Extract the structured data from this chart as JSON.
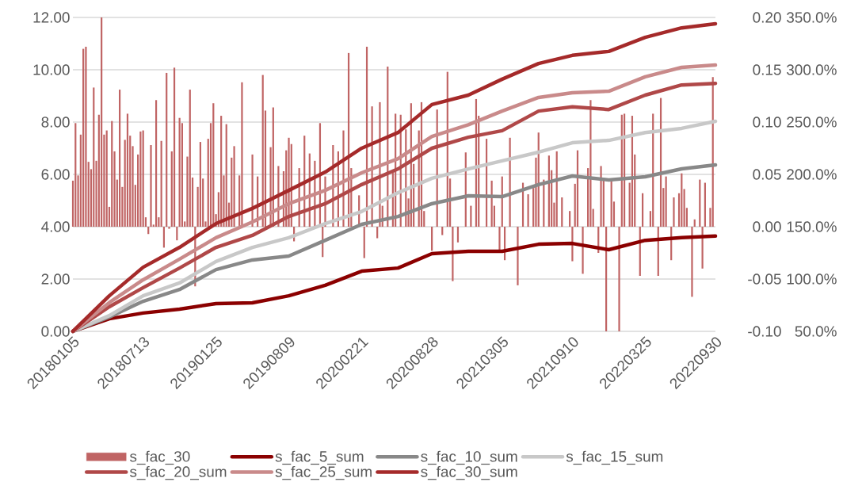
{
  "chart_data": {
    "type": "line",
    "xlim": [
      "2018-01-05",
      "2022-09-30"
    ],
    "xticks": [
      {
        "value": "2018-01-05",
        "label": "20180105"
      },
      {
        "value": "2018-07-13",
        "label": "20180713"
      },
      {
        "value": "2019-01-25",
        "label": "20190125"
      },
      {
        "value": "2019-08-09",
        "label": "20190809"
      },
      {
        "value": "2020-02-21",
        "label": "20200221"
      },
      {
        "value": "2020-08-28",
        "label": "20200828"
      },
      {
        "value": "2021-03-05",
        "label": "20210305"
      },
      {
        "value": "2021-09-10",
        "label": "20210910"
      },
      {
        "value": "2022-03-25",
        "label": "20220325"
      },
      {
        "value": "2022-09-30",
        "label": "20220930"
      }
    ],
    "ylim": [
      0,
      12
    ],
    "yticks": [
      {
        "value": 0,
        "label": "0.00"
      },
      {
        "value": 2,
        "label": "2.00"
      },
      {
        "value": 4,
        "label": "4.00"
      },
      {
        "value": 6,
        "label": "6.00"
      },
      {
        "value": 8,
        "label": "8.00"
      },
      {
        "value": 10,
        "label": "10.00"
      },
      {
        "value": 12,
        "label": "12.00"
      }
    ],
    "y2lim": [
      -0.1,
      0.2
    ],
    "y2ticks": [
      {
        "value": -0.1,
        "label": "-0.10"
      },
      {
        "value": -0.05,
        "label": "-0.05"
      },
      {
        "value": 0,
        "label": "0.00"
      },
      {
        "value": 0.05,
        "label": "0.05"
      },
      {
        "value": 0.1,
        "label": "0.10"
      },
      {
        "value": 0.15,
        "label": "0.15"
      },
      {
        "value": 0.2,
        "label": "0.20"
      }
    ],
    "y3lim": [
      50,
      350
    ],
    "y3ticks": [
      {
        "value": 50,
        "label": "50.0%"
      },
      {
        "value": 100,
        "label": "100.0%"
      },
      {
        "value": 150,
        "label": "150.0%"
      },
      {
        "value": 200,
        "label": "200.0%"
      },
      {
        "value": 250,
        "label": "250.0%"
      },
      {
        "value": 300,
        "label": "300.0%"
      },
      {
        "value": 350,
        "label": "350.0%"
      }
    ],
    "grid": "y",
    "legend": "bottom",
    "x": [
      "2018-01-05",
      "2018-04-13",
      "2018-07-13",
      "2018-10-19",
      "2019-01-25",
      "2019-05-03",
      "2019-08-09",
      "2019-11-15",
      "2020-02-21",
      "2020-05-29",
      "2020-08-28",
      "2020-12-04",
      "2021-03-05",
      "2021-06-11",
      "2021-09-10",
      "2021-12-17",
      "2022-03-25",
      "2022-07-01",
      "2022-09-30"
    ],
    "series": [
      {
        "name": "s_fac_30",
        "type": "bar",
        "axis": "y2",
        "color": "#c06464",
        "x": [
          "2018-01-05",
          "2018-01-12",
          "2018-01-19",
          "2018-01-26",
          "2018-02-02",
          "2018-02-09",
          "2018-02-16",
          "2018-02-23",
          "2018-03-02",
          "2018-03-09",
          "2018-03-16",
          "2018-03-23",
          "2018-03-30",
          "2018-04-06",
          "2018-04-13",
          "2018-04-20",
          "2018-04-27",
          "2018-05-04",
          "2018-05-11",
          "2018-05-18",
          "2018-05-25",
          "2018-06-01",
          "2018-06-08",
          "2018-06-15",
          "2018-06-22",
          "2018-06-29",
          "2018-07-06",
          "2018-07-13",
          "2018-07-20",
          "2018-07-27",
          "2018-08-03",
          "2018-08-10",
          "2018-08-17",
          "2018-08-24",
          "2018-08-31",
          "2018-09-07",
          "2018-09-14",
          "2018-09-21",
          "2018-09-28",
          "2018-10-05",
          "2018-10-12",
          "2018-10-19",
          "2018-10-26",
          "2018-11-02",
          "2018-11-09",
          "2018-11-16",
          "2018-11-23",
          "2018-11-30",
          "2018-12-07",
          "2018-12-14",
          "2018-12-21",
          "2018-12-28",
          "2019-01-04",
          "2019-01-11",
          "2019-01-18",
          "2019-01-25",
          "2019-02-01",
          "2019-02-08",
          "2019-02-15",
          "2019-02-22",
          "2019-03-01",
          "2019-03-08",
          "2019-03-15",
          "2019-03-29",
          "2019-04-05",
          "2019-05-03",
          "2019-05-17",
          "2019-05-31",
          "2019-06-07",
          "2019-06-21",
          "2019-06-28",
          "2019-07-12",
          "2019-07-26",
          "2019-08-02",
          "2019-08-09",
          "2019-08-16",
          "2019-08-23",
          "2019-09-06",
          "2019-09-20",
          "2019-10-04",
          "2019-10-18",
          "2019-11-01",
          "2019-11-08",
          "2019-11-15",
          "2019-12-06",
          "2019-12-20",
          "2020-01-03",
          "2020-01-17",
          "2020-01-24",
          "2020-02-14",
          "2020-02-28",
          "2020-03-06",
          "2020-03-20",
          "2020-04-03",
          "2020-04-10",
          "2020-04-17",
          "2020-05-01",
          "2020-05-15",
          "2020-05-22",
          "2020-06-05",
          "2020-06-19",
          "2020-06-26",
          "2020-07-03",
          "2020-07-10",
          "2020-07-24",
          "2020-07-31",
          "2020-08-07",
          "2020-08-28",
          "2020-09-11",
          "2020-09-25",
          "2020-10-09",
          "2020-10-16",
          "2020-10-23",
          "2020-11-06",
          "2020-11-13",
          "2020-11-27",
          "2020-12-11",
          "2020-12-25",
          "2021-01-01",
          "2021-01-22",
          "2021-02-05",
          "2021-02-12",
          "2021-02-26",
          "2021-03-05",
          "2021-03-12",
          "2021-03-26",
          "2021-04-16",
          "2021-04-30",
          "2021-05-14",
          "2021-05-28",
          "2021-06-04",
          "2021-06-11",
          "2021-06-25",
          "2021-07-09",
          "2021-07-16",
          "2021-07-23",
          "2021-07-30",
          "2021-08-13",
          "2021-09-03",
          "2021-09-10",
          "2021-09-17",
          "2021-09-24",
          "2021-10-08",
          "2021-10-22",
          "2021-10-29",
          "2021-11-05",
          "2021-11-19",
          "2021-11-26",
          "2021-12-03",
          "2021-12-10",
          "2021-12-24",
          "2021-12-31",
          "2022-01-14",
          "2022-01-21",
          "2022-01-28",
          "2022-02-11",
          "2022-02-18",
          "2022-02-25",
          "2022-03-11",
          "2022-03-18",
          "2022-04-01",
          "2022-04-08",
          "2022-04-15",
          "2022-04-29",
          "2022-05-06",
          "2022-05-13",
          "2022-05-20",
          "2022-06-03",
          "2022-06-10",
          "2022-06-24",
          "2022-07-01",
          "2022-07-08",
          "2022-07-15",
          "2022-07-29",
          "2022-08-05",
          "2022-08-19",
          "2022-08-26",
          "2022-09-02",
          "2022-09-16",
          "2022-09-23"
        ],
        "values": [
          0.044,
          0.099,
          0.049,
          0.088,
          0.17,
          0.172,
          0.062,
          0.055,
          0.133,
          0.063,
          0.107,
          0.2,
          0.088,
          0.092,
          0.019,
          0.101,
          0.072,
          0.045,
          0.131,
          0.038,
          0.083,
          0.108,
          0.087,
          0.077,
          0.04,
          0.069,
          0.091,
          0.092,
          0.009,
          -0.007,
          0.078,
          0.002,
          0.121,
          0.009,
          0.082,
          -0.02,
          0.147,
          -0.002,
          0.072,
          0.152,
          -0.013,
          0.104,
          0.099,
          0.005,
          0.067,
          0.131,
          0.047,
          -0.057,
          0.038,
          0.081,
          0.046,
          0.005,
          0.084,
          0.099,
          0.118,
          0.012,
          0.033,
          0.106,
          0.049,
          0.098,
          0.023,
          0.066,
          0.077,
          0.049,
          0.138,
          0.069,
          0.048,
          0.145,
          0.111,
          0.076,
          0.114,
          0.058,
          0.053,
          0.073,
          0.085,
          0.079,
          -0.014,
          0.056,
          0.087,
          0.07,
          0.063,
          0.099,
          -0.029,
          0.048,
          0.078,
          0.072,
          0.092,
          0.166,
          0.056,
          0.03,
          -0.03,
          0.172,
          0.115,
          -0.011,
          0.119,
          0.02,
          0.153,
          0.052,
          0.108,
          0.107,
          0.093,
          0.027,
          0.118,
          0.06,
          0.092,
          0.119,
          0.015,
          -0.023,
          0.112,
          -0.008,
          0.148,
          0.046,
          -0.052,
          -0.015,
          null,
          0.071,
          0.02,
          0.122,
          0.106,
          0.084,
          0.044,
          0.02,
          -0.022,
          0.048,
          -0.032,
          0.085,
          -0.056,
          0.042,
          0.031,
          0.037,
          0.066,
          0.09,
          0.045,
          0.068,
          0.054,
          0.023,
          0.072,
          0.028,
          0.015,
          -0.033,
          0.041,
          0.073,
          -0.045,
          0.056,
          0.121,
          0.017,
          -0.025,
          0.058,
          0.044,
          -0.1,
          0.044,
          0.024,
          -0.1,
          0.107,
          0.108,
          0.042,
          0.106,
          0.069,
          -0.047,
          0.032,
          null,
          0.015,
          0.108,
          -0.047,
          0.123,
          0.037,
          0.048,
          -0.032,
          0.028,
          0.032,
          0.051,
          0.036,
          0.018,
          -0.067,
          0.007,
          0.045,
          -0.04,
          0.042,
          0.018,
          0.143
        ]
      },
      {
        "name": "s_fac_5_sum",
        "color": "#8b0000",
        "values": [
          0,
          0.48,
          0.7,
          0.85,
          1.06,
          1.09,
          1.36,
          1.76,
          2.3,
          2.42,
          2.97,
          3.06,
          3.06,
          3.33,
          3.36,
          3.12,
          3.48,
          3.58,
          3.64
        ]
      },
      {
        "name": "s_fac_10_sum",
        "color": "#888888",
        "values": [
          0,
          0.55,
          1.15,
          1.6,
          2.36,
          2.73,
          2.88,
          3.48,
          4.09,
          4.39,
          4.88,
          5.18,
          5.15,
          5.61,
          5.94,
          5.79,
          5.91,
          6.21,
          6.36
        ]
      },
      {
        "name": "s_fac_15_sum",
        "color": "#c8c8c8",
        "values": [
          0,
          0.6,
          1.36,
          1.85,
          2.67,
          3.21,
          3.58,
          4.12,
          4.58,
          5.3,
          5.85,
          6.21,
          6.52,
          6.85,
          7.21,
          7.3,
          7.6,
          7.76,
          8.03
        ]
      },
      {
        "name": "s_fac_20_sum",
        "color": "#b04848",
        "values": [
          0,
          0.94,
          1.67,
          2.42,
          3.21,
          3.67,
          4.39,
          4.88,
          5.61,
          6.21,
          7.0,
          7.42,
          7.67,
          8.42,
          8.58,
          8.48,
          9.03,
          9.42,
          9.48
        ]
      },
      {
        "name": "s_fac_25_sum",
        "color": "#c98a8a",
        "values": [
          0,
          1.1,
          1.97,
          2.76,
          3.58,
          4.18,
          4.88,
          5.39,
          6.06,
          6.6,
          7.45,
          7.9,
          8.42,
          8.94,
          9.12,
          9.18,
          9.73,
          10.09,
          10.18
        ]
      },
      {
        "name": "s_fac_30_sum",
        "color": "#a52a2a",
        "values": [
          0,
          1.36,
          2.45,
          3.21,
          4.12,
          4.7,
          5.39,
          6.09,
          7.0,
          7.6,
          8.67,
          9.03,
          9.64,
          10.24,
          10.55,
          10.7,
          11.24,
          11.6,
          11.76
        ]
      }
    ]
  }
}
